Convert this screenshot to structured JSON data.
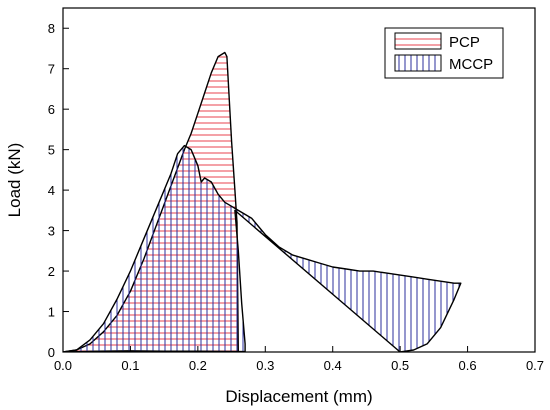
{
  "chart_data": {
    "type": "area",
    "xlabel": "Displacement (mm)",
    "ylabel": "Load (kN)",
    "xlim": [
      0.0,
      0.7
    ],
    "ylim": [
      0,
      8.5
    ],
    "xticks": [
      0.0,
      0.1,
      0.2,
      0.3,
      0.4,
      0.5,
      0.6,
      0.7
    ],
    "xtick_labels": [
      "0.0",
      "0.1",
      "0.2",
      "0.3",
      "0.4",
      "0.5",
      "0.6",
      "0.7"
    ],
    "yticks": [
      0,
      1,
      2,
      3,
      4,
      5,
      6,
      7,
      8
    ],
    "ytick_labels": [
      "0",
      "1",
      "2",
      "3",
      "4",
      "5",
      "6",
      "7",
      "8"
    ],
    "grid": false,
    "legend_position": "top-right",
    "series": [
      {
        "name": "PCP",
        "color": "#e8434f",
        "hatch": "horizontal",
        "upper": [
          [
            0.0,
            0.0
          ],
          [
            0.02,
            0.05
          ],
          [
            0.04,
            0.2
          ],
          [
            0.06,
            0.5
          ],
          [
            0.08,
            0.9
          ],
          [
            0.1,
            1.5
          ],
          [
            0.12,
            2.3
          ],
          [
            0.14,
            3.2
          ],
          [
            0.16,
            4.1
          ],
          [
            0.18,
            5.0
          ],
          [
            0.19,
            5.4
          ],
          [
            0.2,
            5.9
          ],
          [
            0.21,
            6.4
          ],
          [
            0.22,
            6.9
          ],
          [
            0.23,
            7.3
          ],
          [
            0.24,
            7.4
          ],
          [
            0.243,
            7.3
          ],
          [
            0.25,
            5.2
          ],
          [
            0.255,
            4.0
          ],
          [
            0.258,
            3.2
          ],
          [
            0.26,
            0.0
          ]
        ],
        "lower": [
          [
            0.0,
            0.0
          ],
          [
            0.05,
            0.02
          ],
          [
            0.1,
            0.03
          ],
          [
            0.15,
            0.02
          ],
          [
            0.2,
            0.01
          ],
          [
            0.26,
            0.0
          ]
        ]
      },
      {
        "name": "MCCP",
        "color": "#2b2f9c",
        "hatch": "vertical",
        "upper": [
          [
            0.0,
            0.0
          ],
          [
            0.02,
            0.05
          ],
          [
            0.04,
            0.3
          ],
          [
            0.06,
            0.7
          ],
          [
            0.08,
            1.3
          ],
          [
            0.1,
            2.0
          ],
          [
            0.12,
            2.8
          ],
          [
            0.14,
            3.6
          ],
          [
            0.16,
            4.4
          ],
          [
            0.17,
            4.9
          ],
          [
            0.18,
            5.1
          ],
          [
            0.19,
            5.0
          ],
          [
            0.195,
            4.8
          ],
          [
            0.2,
            4.6
          ],
          [
            0.205,
            4.2
          ],
          [
            0.21,
            4.3
          ],
          [
            0.22,
            4.2
          ],
          [
            0.23,
            3.9
          ],
          [
            0.24,
            3.7
          ],
          [
            0.25,
            3.6
          ],
          [
            0.26,
            3.5
          ],
          [
            0.27,
            3.4
          ],
          [
            0.28,
            3.3
          ],
          [
            0.29,
            3.1
          ],
          [
            0.3,
            2.9
          ],
          [
            0.32,
            2.6
          ],
          [
            0.34,
            2.4
          ],
          [
            0.36,
            2.3
          ],
          [
            0.38,
            2.2
          ],
          [
            0.4,
            2.1
          ],
          [
            0.42,
            2.05
          ],
          [
            0.44,
            2.0
          ],
          [
            0.46,
            2.0
          ],
          [
            0.48,
            1.95
          ],
          [
            0.5,
            1.9
          ],
          [
            0.52,
            1.85
          ],
          [
            0.54,
            1.8
          ],
          [
            0.56,
            1.75
          ],
          [
            0.58,
            1.7
          ],
          [
            0.59,
            1.7
          ],
          [
            0.58,
            1.3
          ],
          [
            0.56,
            0.6
          ],
          [
            0.54,
            0.2
          ],
          [
            0.52,
            0.05
          ],
          [
            0.5,
            0.0
          ]
        ],
        "lower": [
          [
            0.0,
            0.0
          ],
          [
            0.1,
            0.02
          ],
          [
            0.2,
            0.02
          ],
          [
            0.27,
            0.01
          ],
          [
            0.27,
            0.2
          ],
          [
            0.265,
            1.2
          ],
          [
            0.26,
            2.5
          ],
          [
            0.255,
            3.5
          ]
        ]
      }
    ]
  }
}
